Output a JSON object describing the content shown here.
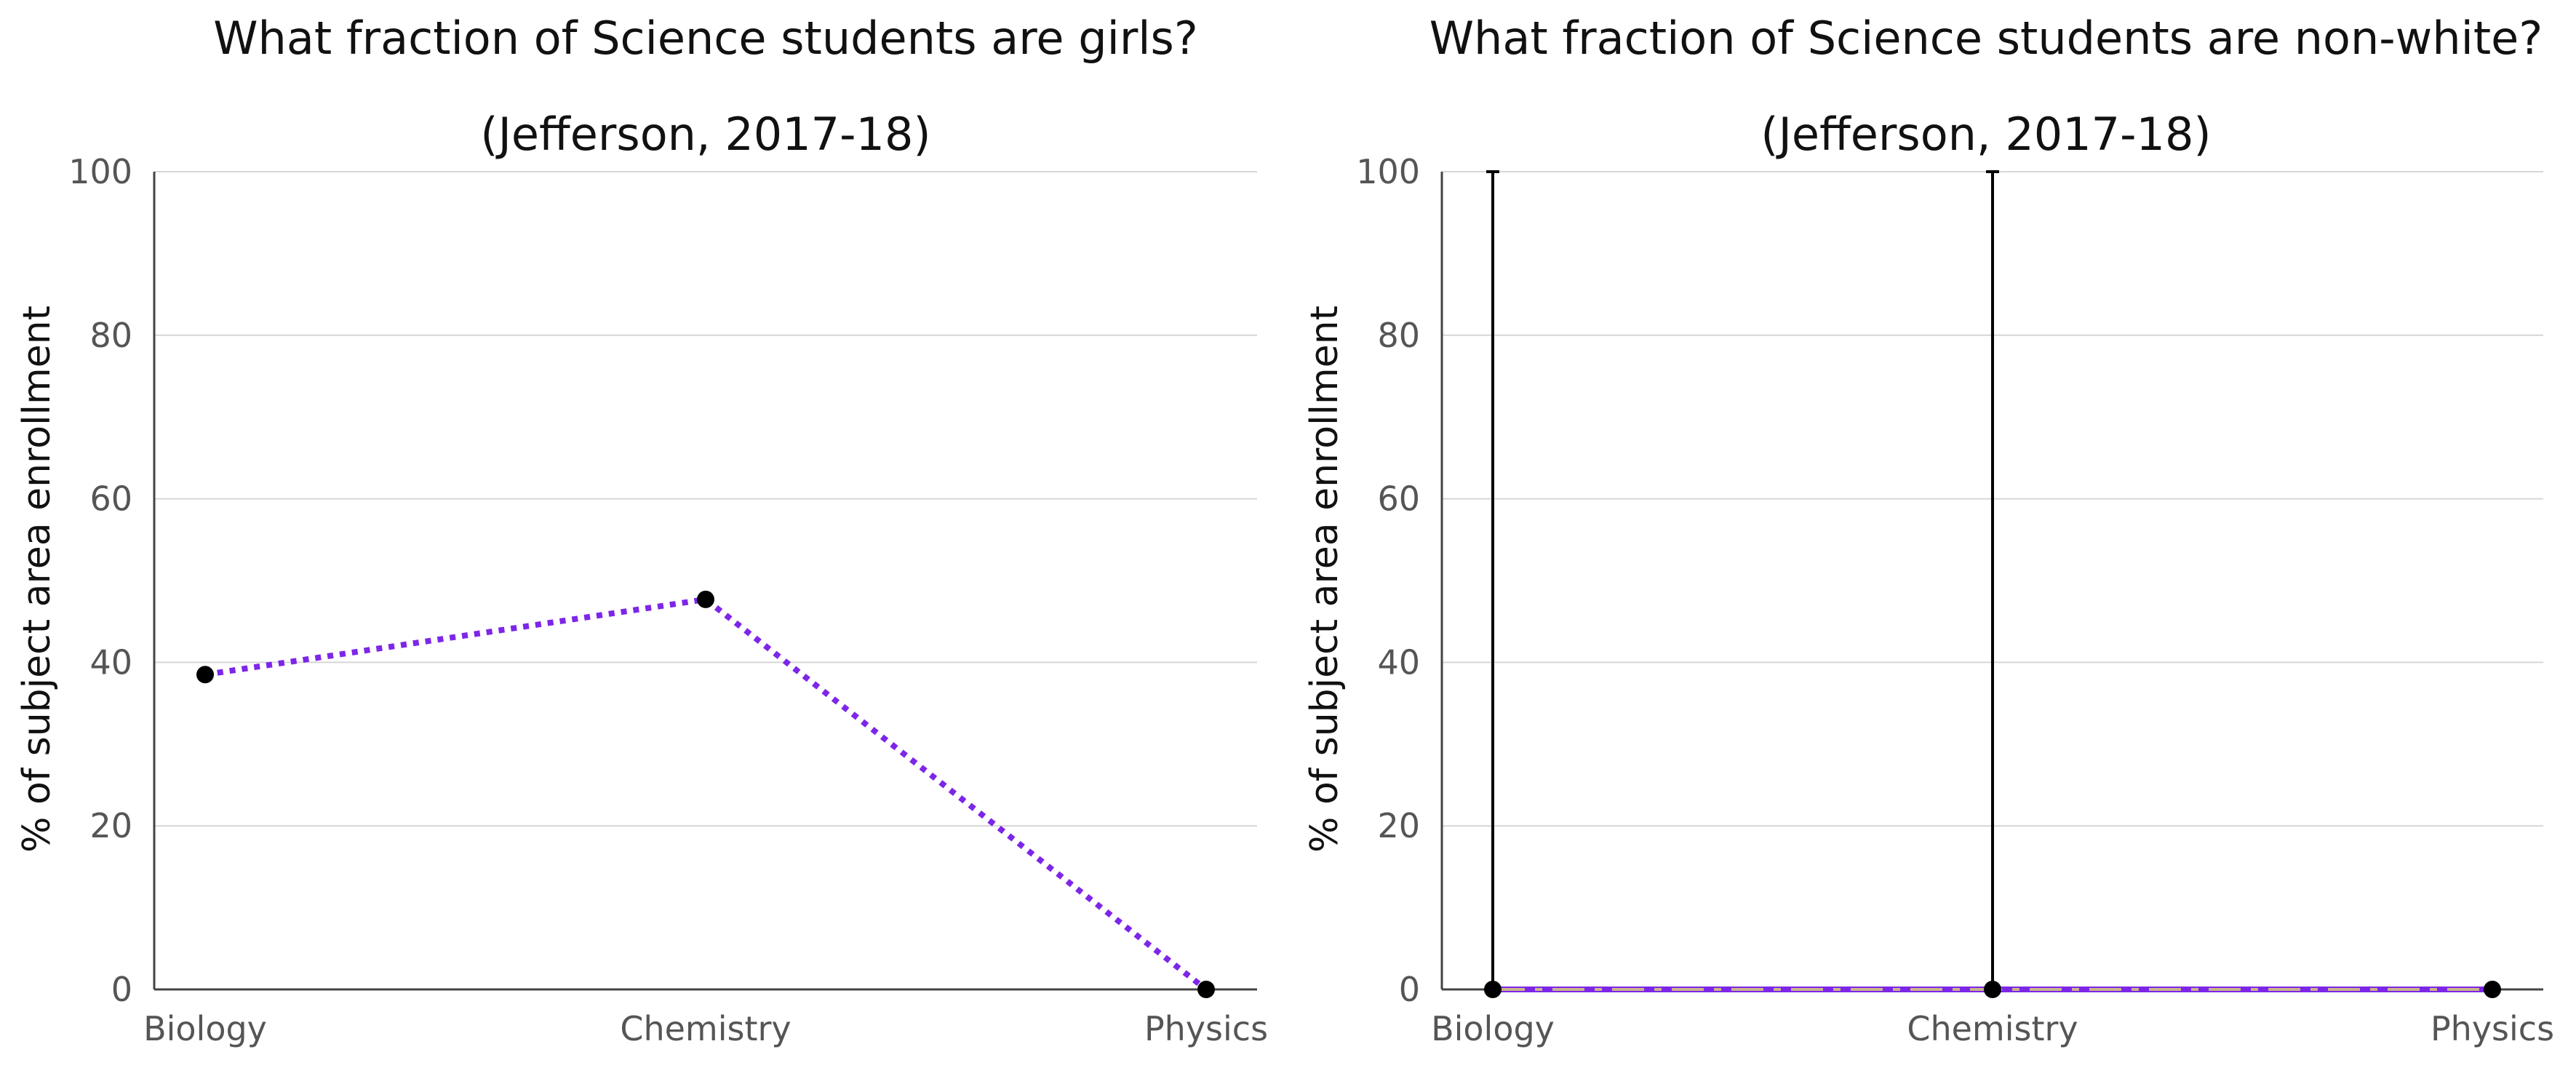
{
  "chart_data": [
    {
      "type": "line",
      "title": "What fraction of Science students are girls?",
      "subtitle": "(Jefferson, 2017-18)",
      "xlabel": "",
      "ylabel": "% of subject area enrollment",
      "categories": [
        "Biology",
        "Chemistry",
        "Physics"
      ],
      "ylim": [
        0,
        100
      ],
      "yticks": [
        0,
        20,
        40,
        60,
        80,
        100
      ],
      "grid": true,
      "colors": {
        "line": "#7d26e8",
        "point": "#000000"
      },
      "series": [
        {
          "values": [
            38.5,
            47.7,
            0
          ],
          "line_style": "dotted"
        }
      ],
      "error_bars": []
    },
    {
      "type": "line",
      "title": "What fraction of Science students are non-white?",
      "subtitle": "(Jefferson, 2017-18)",
      "xlabel": "",
      "ylabel": "% of subject area enrollment",
      "categories": [
        "Biology",
        "Chemistry",
        "Physics"
      ],
      "ylim": [
        0,
        100
      ],
      "yticks": [
        0,
        20,
        40,
        60,
        80,
        100
      ],
      "grid": true,
      "colors": {
        "line": "#7d26e8",
        "dash": "#c8b48a",
        "point": "#000000",
        "error_bar": "#000000"
      },
      "series": [
        {
          "values": [
            0,
            0,
            0
          ],
          "line_style": "dash-dot"
        }
      ],
      "error_bars": [
        {
          "category": "Biology",
          "low": 0,
          "high": 100
        },
        {
          "category": "Chemistry",
          "low": 0,
          "high": 100
        }
      ]
    }
  ]
}
